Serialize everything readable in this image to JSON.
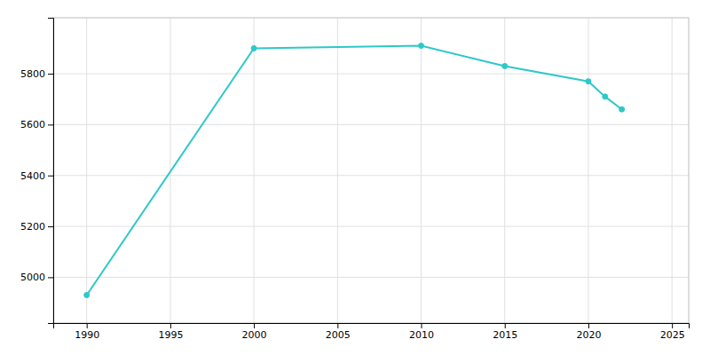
{
  "chart_data": {
    "type": "line",
    "x": [
      1990,
      2000,
      2010,
      2015,
      2020,
      2021,
      2022
    ],
    "values": [
      4930,
      5900,
      5910,
      5830,
      5770,
      5710,
      5660
    ],
    "color": "#2ec8c8",
    "marker": "circle",
    "xlim": [
      1988,
      2026
    ],
    "ylim": [
      4820,
      6020
    ],
    "xticks": [
      1990,
      1995,
      2000,
      2005,
      2010,
      2015,
      2020,
      2025
    ],
    "yticks": [
      5000,
      5200,
      5400,
      5600,
      5800
    ],
    "grid": true
  }
}
